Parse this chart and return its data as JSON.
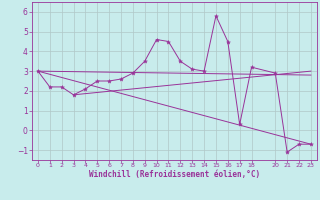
{
  "xlabel": "Windchill (Refroidissement éolien,°C)",
  "bg_color": "#c8ecec",
  "line_color": "#993399",
  "grid_color": "#b0c8c8",
  "ylim": [
    -1.5,
    6.5
  ],
  "xlim": [
    -0.5,
    23.5
  ],
  "yticks": [
    -1,
    0,
    1,
    2,
    3,
    4,
    5,
    6
  ],
  "xticks": [
    0,
    1,
    2,
    3,
    4,
    5,
    6,
    7,
    8,
    9,
    10,
    11,
    12,
    13,
    14,
    15,
    16,
    17,
    18,
    20,
    21,
    22,
    23
  ],
  "series_main": {
    "x": [
      0,
      1,
      2,
      3,
      4,
      5,
      6,
      7,
      8,
      9,
      10,
      11,
      12,
      13,
      14,
      15,
      16,
      17,
      18,
      20,
      21,
      22,
      23
    ],
    "y": [
      3.0,
      2.2,
      2.2,
      1.8,
      2.1,
      2.5,
      2.5,
      2.6,
      2.9,
      3.5,
      4.6,
      4.5,
      3.5,
      3.1,
      3.0,
      5.8,
      4.5,
      0.3,
      3.2,
      2.9,
      -1.1,
      -0.7,
      -0.7
    ]
  },
  "trend1": {
    "x": [
      0,
      23
    ],
    "y": [
      3.0,
      -0.7
    ]
  },
  "trend2": {
    "x": [
      0,
      23
    ],
    "y": [
      3.0,
      2.8
    ]
  },
  "trend3": {
    "x": [
      3,
      23
    ],
    "y": [
      1.8,
      3.0
    ]
  }
}
